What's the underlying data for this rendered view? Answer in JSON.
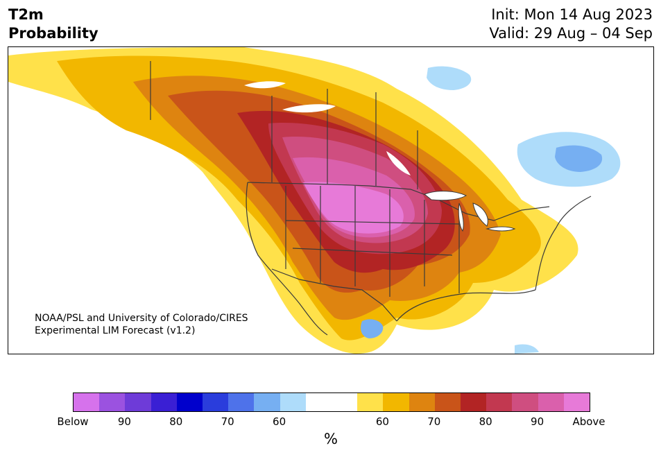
{
  "header": {
    "title_line1": "T2m",
    "title_line2": "Probability",
    "init": "Init: Mon 14 Aug 2023",
    "valid": "Valid: 29 Aug – 04 Sep"
  },
  "credit": {
    "line1": "NOAA/PSL and University of Colorado/CIRES",
    "line2": "Experimental LIM Forecast (v1.2)"
  },
  "colorbar": {
    "colors": [
      "#d672ec",
      "#9b52e0",
      "#6e3bd8",
      "#3a1fd4",
      "#0000cc",
      "#2a3ddc",
      "#4e72ea",
      "#76aff2",
      "#aedcfa",
      "#ffffff",
      "#ffffff",
      "#ffe14a",
      "#f2b700",
      "#de8410",
      "#c95419",
      "#b22424",
      "#c23850",
      "#cf4e80",
      "#da60ac",
      "#e77ad8"
    ],
    "ticks": [
      "Below",
      "90",
      "80",
      "70",
      "60",
      "60",
      "70",
      "80",
      "90",
      "Above"
    ],
    "unit": "%"
  },
  "map": {
    "land_color": "#ffffff",
    "border_color": "#3a3a3a"
  }
}
